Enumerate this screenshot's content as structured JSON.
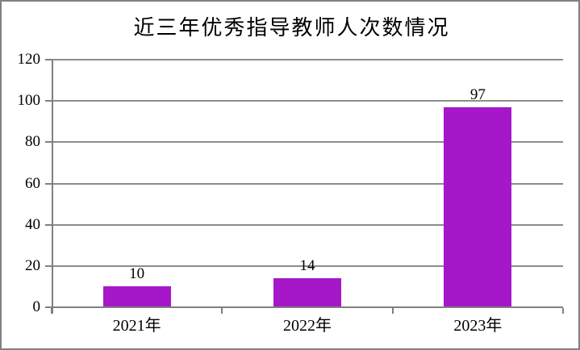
{
  "chart_data": {
    "type": "bar",
    "title": "近三年优秀指导教师人次数情况",
    "categories": [
      "2021年",
      "2022年",
      "2023年"
    ],
    "values": [
      10,
      14,
      97
    ],
    "data_labels": [
      "10",
      "14",
      "97"
    ],
    "xlabel": "",
    "ylabel": "",
    "ylim": [
      0,
      120
    ],
    "ytick_interval": 20,
    "yticks": [
      0,
      20,
      40,
      60,
      80,
      100,
      120
    ],
    "grid": "horizontal",
    "legend": "none",
    "colors": {
      "bar": "#A617C9",
      "axis": "#808080",
      "gridline": "#8C8C8C",
      "frame": "#808080",
      "background": "#FFFFFF",
      "text": "#000000"
    }
  }
}
